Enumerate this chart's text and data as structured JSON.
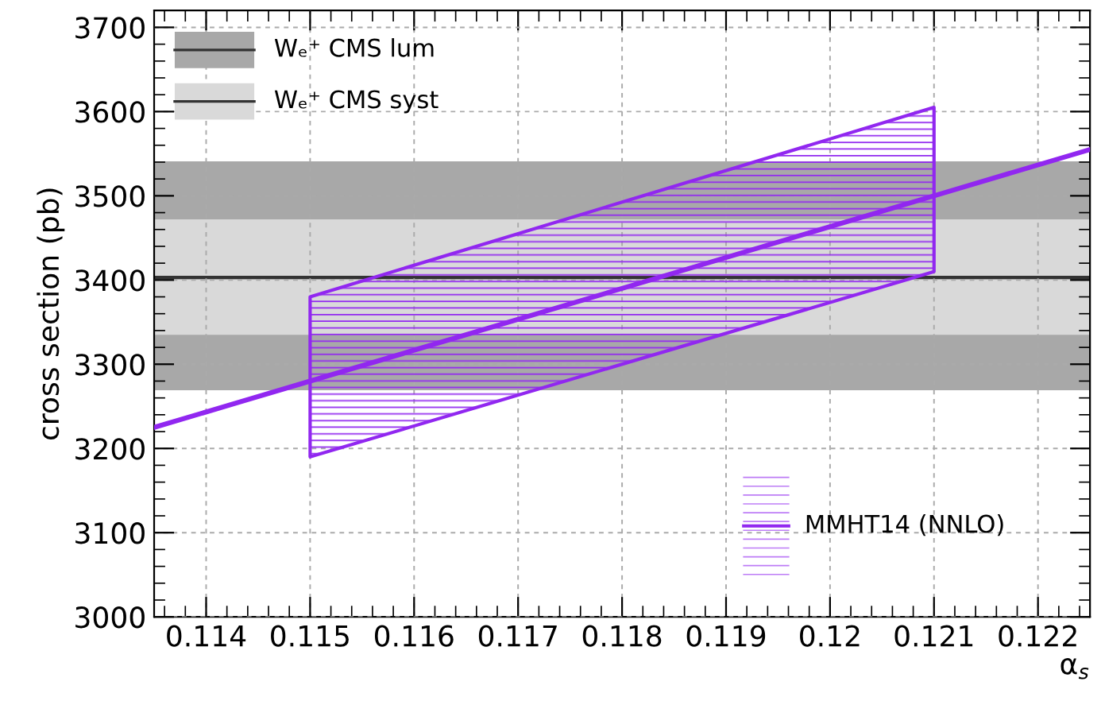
{
  "chart_data": {
    "type": "line",
    "ylabel": "cross section (pb)",
    "xlabel": "α$_{s}$",
    "xlim": [
      0.1135,
      0.1225
    ],
    "xticks": [
      0.114,
      0.115,
      0.116,
      0.117,
      0.118,
      0.119,
      0.12,
      0.121,
      0.122
    ],
    "ylim": [
      3000,
      3720
    ],
    "yticks": [
      3000,
      3100,
      3200,
      3300,
      3400,
      3500,
      3600,
      3700
    ],
    "grid": true,
    "legend": "top left",
    "bands": [
      {
        "axis": "y",
        "from": 3269,
        "to": 3541,
        "label": "Wₑ⁺ CMS lum",
        "color": "#a8a8a8"
      },
      {
        "axis": "y",
        "from": 3335,
        "to": 3472,
        "label": "Wₑ⁺ CMS syst",
        "color": "#d9d9d9"
      }
    ],
    "ref_lines": [
      {
        "axis": "y",
        "value": 3403,
        "color": "#333333"
      }
    ],
    "series": [
      {
        "name": "MMHT14 (NNLO)",
        "color": "#9127f0",
        "x": [
          0.1135,
          0.115,
          0.121,
          0.1225
        ],
        "values": [
          3225,
          3280,
          3500,
          3555
        ],
        "lower": [
          null,
          3190,
          3410,
          null
        ],
        "upper": [
          null,
          3380,
          3605,
          null
        ]
      }
    ]
  }
}
